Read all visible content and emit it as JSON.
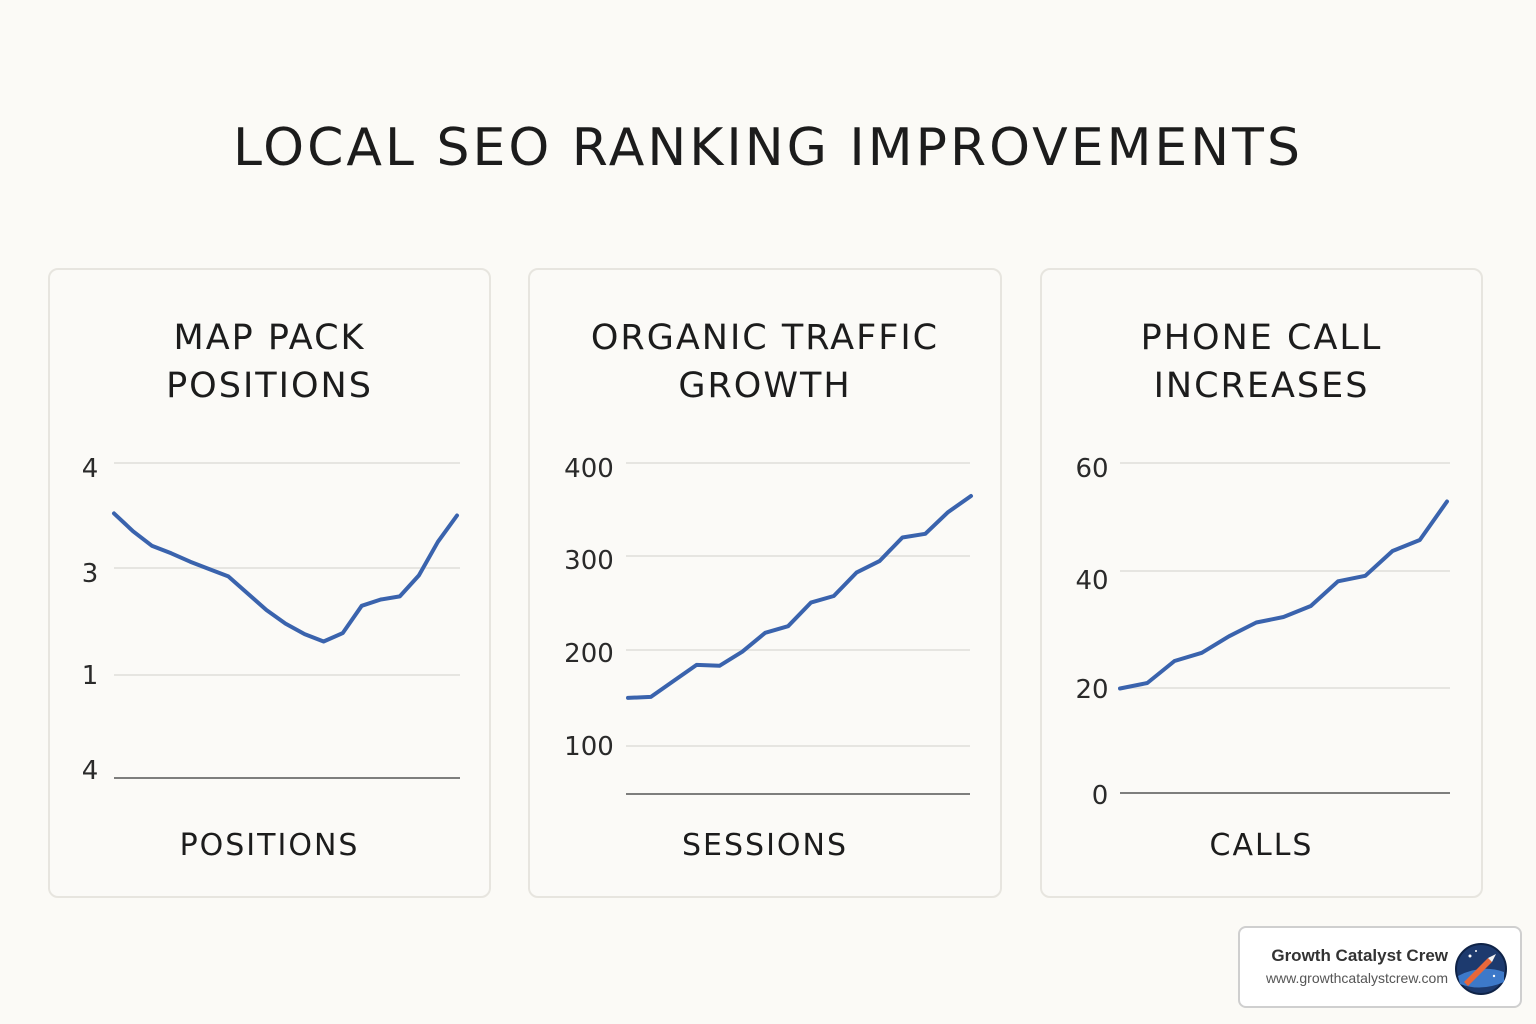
{
  "title": "LOCAL SEO RANKING IMPROVEMENTS",
  "colors": {
    "line": "#3a63ad",
    "grid": "#e6e5e1",
    "axis": "#555555"
  },
  "chart_data": [
    {
      "type": "line",
      "title": "MAP PACK\nPOSITIONS",
      "xlabel": "POSITIONS",
      "ylabel": "",
      "tick_labels": [
        "4",
        "3",
        "1",
        "4"
      ],
      "ylim": [
        0,
        3
      ],
      "grid": true,
      "y": [
        2.52,
        2.35,
        2.21,
        2.14,
        2.06,
        1.99,
        1.92,
        1.76,
        1.6,
        1.47,
        1.37,
        1.3,
        1.38,
        1.64,
        1.7,
        1.73,
        1.93,
        2.25,
        2.5
      ]
    },
    {
      "type": "line",
      "title": "ORGANIC TRAFFIC\nGROWTH",
      "xlabel": "SESSIONS",
      "ylabel": "",
      "tick_labels": [
        "400",
        "300",
        "200",
        "100"
      ],
      "ylim": [
        100,
        400
      ],
      "grid": true,
      "y": [
        151,
        152,
        169,
        186,
        185,
        200,
        220,
        227,
        252,
        259,
        284,
        296,
        321,
        325,
        348,
        365
      ]
    },
    {
      "type": "line",
      "title": "PHONE CALL\nINCREASES",
      "xlabel": "CALLS",
      "ylabel": "",
      "tick_labels": [
        "60",
        "40",
        "20",
        "0"
      ],
      "ylim": [
        0,
        60
      ],
      "grid": true,
      "y": [
        19,
        20,
        24,
        25.5,
        28.5,
        31,
        32,
        34,
        38.5,
        39.5,
        44,
        46,
        53
      ]
    }
  ],
  "badge": {
    "name": "Growth Catalyst Crew",
    "url": "www.growthcatalystcrew.com",
    "logo_icon": "rocket-globe-icon"
  }
}
